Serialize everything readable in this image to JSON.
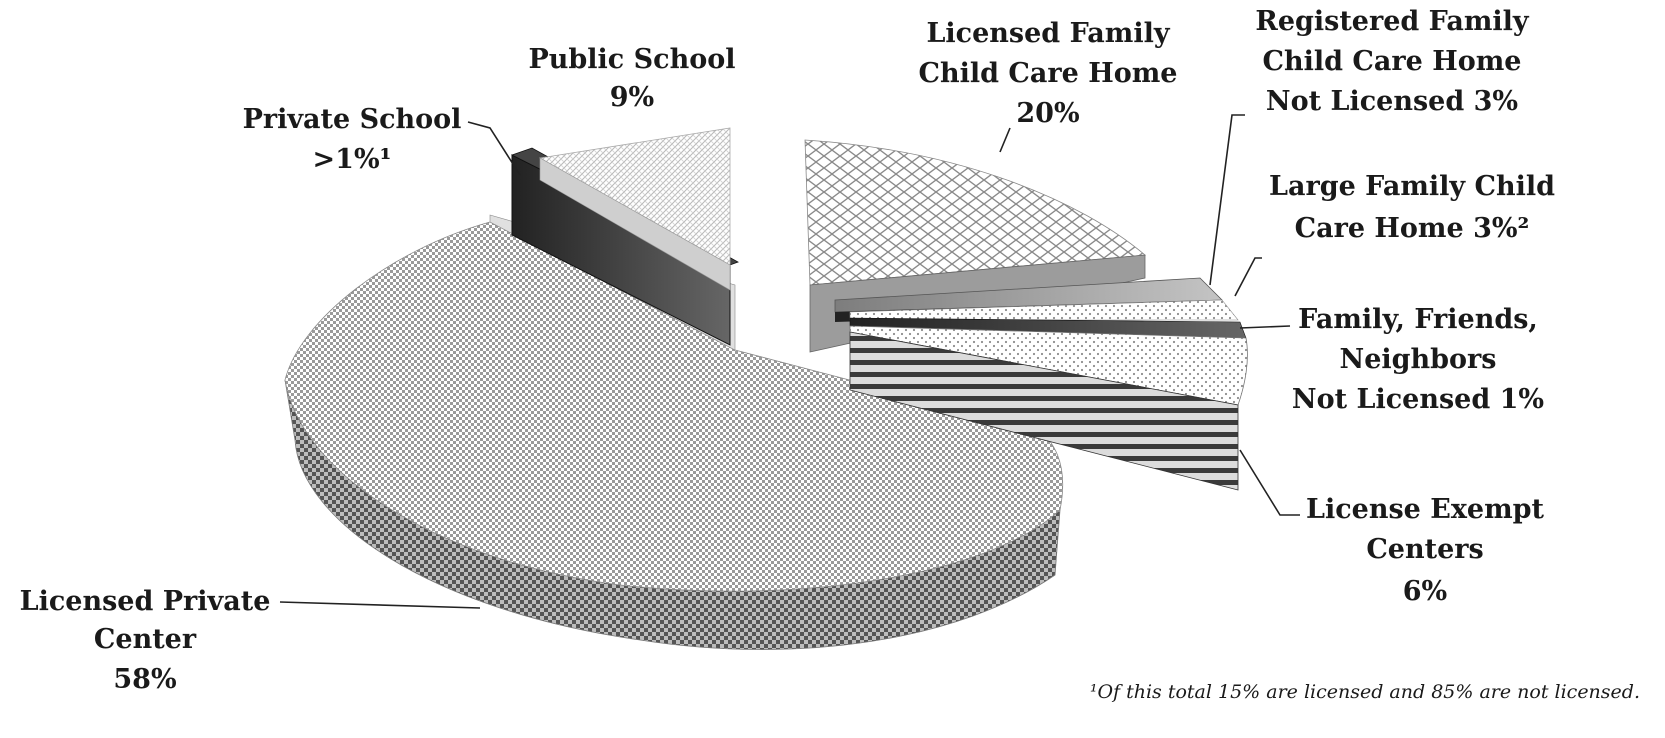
{
  "chart_data": {
    "type": "pie",
    "style": "3d-exploded",
    "slices": [
      {
        "label_lines": [
          "Licensed Private",
          "Center",
          "58%"
        ],
        "value": 58,
        "pattern": "checker-fine"
      },
      {
        "label_lines": [
          "Private School",
          ">1%¹"
        ],
        "value": 1,
        "pattern": "solid-dark"
      },
      {
        "label_lines": [
          "Public School",
          "9%"
        ],
        "value": 9,
        "pattern": "hatch-light"
      },
      {
        "label_lines": [
          "Licensed Family",
          "Child Care Home",
          "20%"
        ],
        "value": 20,
        "pattern": "diamond"
      },
      {
        "label_lines": [
          "Registered Family",
          "Child Care Home",
          "Not Licensed 3%"
        ],
        "value": 3,
        "pattern": "gray"
      },
      {
        "label_lines": [
          "Large Family Child",
          "Care Home 3%²"
        ],
        "value": 3,
        "pattern": "dots"
      },
      {
        "label_lines": [
          "Family, Friends,",
          "Neighbors",
          "Not Licensed 1%"
        ],
        "value": 1,
        "pattern": "dark"
      },
      {
        "label_lines": [
          "License Exempt",
          "Centers",
          "6%"
        ],
        "value": 6,
        "pattern": "stripes"
      }
    ],
    "footnote": "¹Of this total 15% are licensed and 85% are not licensed."
  }
}
